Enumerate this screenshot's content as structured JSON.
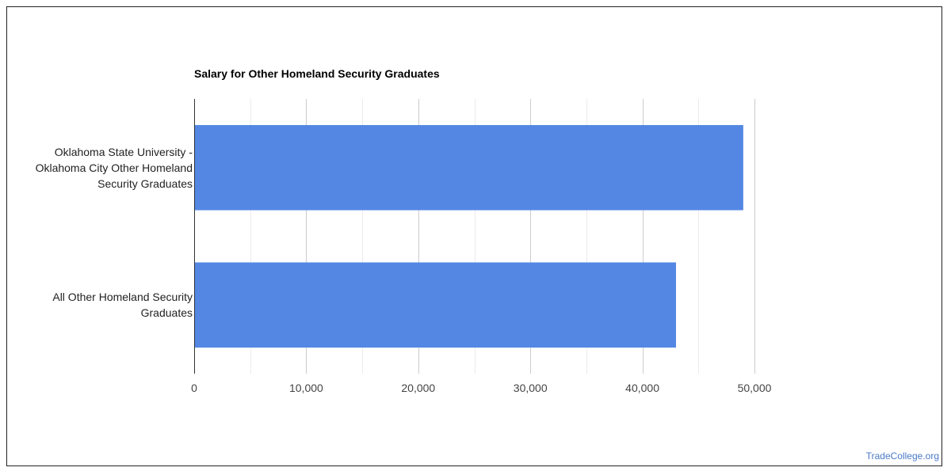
{
  "chart_data": {
    "type": "bar",
    "orientation": "horizontal",
    "title": "Salary for Other Homeland Security Graduates",
    "categories": [
      "Oklahoma State University - Oklahoma City Other Homeland Security Graduates",
      "All Other Homeland Security Graduates"
    ],
    "category_lines": [
      [
        "Oklahoma State University -",
        "Oklahoma City Other Homeland",
        "Security Graduates"
      ],
      [
        "All Other Homeland Security",
        "Graduates"
      ]
    ],
    "values": [
      49000,
      43000
    ],
    "xlim": [
      0,
      50000
    ],
    "x_ticks": [
      0,
      10000,
      20000,
      30000,
      40000,
      50000
    ],
    "x_tick_labels": [
      "0",
      "10,000",
      "20,000",
      "30,000",
      "40,000",
      "50,000"
    ],
    "xlabel": "",
    "ylabel": "",
    "grid": true,
    "legend": "none",
    "bar_color": "#5387e3",
    "grid_color": "#cccccc"
  },
  "footer": {
    "source_label": "TradeCollege.org",
    "source_color": "#4a7ac7"
  }
}
